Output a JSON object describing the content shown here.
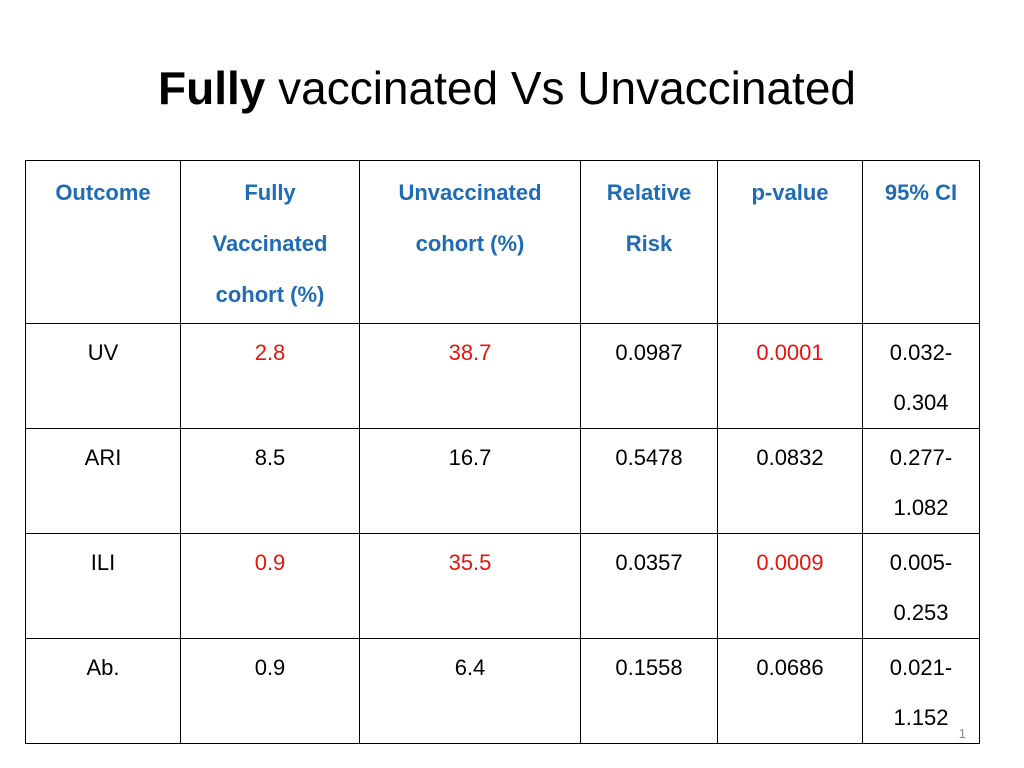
{
  "title": {
    "bold_part": "Fully",
    "rest": " vaccinated Vs Unvaccinated"
  },
  "colors": {
    "header_text": "#1f6bb5",
    "highlight_text": "#e8140c",
    "normal_text": "#000000"
  },
  "table": {
    "headers": [
      {
        "lines": [
          "Outcome"
        ]
      },
      {
        "lines": [
          "Fully",
          "Vaccinated",
          "cohort (%)"
        ]
      },
      {
        "lines": [
          "Unvaccinated",
          "cohort (%)"
        ]
      },
      {
        "lines": [
          "Relative",
          "Risk"
        ]
      },
      {
        "lines": [
          "p-value"
        ]
      },
      {
        "lines": [
          "95% CI"
        ]
      }
    ],
    "rows": [
      {
        "outcome": "UV",
        "fully_vaccinated": "2.8",
        "unvaccinated": "38.7",
        "relative_risk": "0.0987",
        "p_value": "0.0001",
        "ci_lines": [
          "0.032-",
          "0.304"
        ],
        "highlight": true
      },
      {
        "outcome": "ARI",
        "fully_vaccinated": "8.5",
        "unvaccinated": "16.7",
        "relative_risk": "0.5478",
        "p_value": "0.0832",
        "ci_lines": [
          "0.277-",
          "1.082"
        ],
        "highlight": false
      },
      {
        "outcome": "ILI",
        "fully_vaccinated": "0.9",
        "unvaccinated": "35.5",
        "relative_risk": "0.0357",
        "p_value": "0.0009",
        "ci_lines": [
          "0.005-",
          "0.253"
        ],
        "highlight": true
      },
      {
        "outcome": "Ab.",
        "fully_vaccinated": "0.9",
        "unvaccinated": "6.4",
        "relative_risk": "0.1558",
        "p_value": "0.0686",
        "ci_lines": [
          "0.021-",
          "1.152"
        ],
        "highlight": false
      }
    ]
  },
  "page_number": "1"
}
